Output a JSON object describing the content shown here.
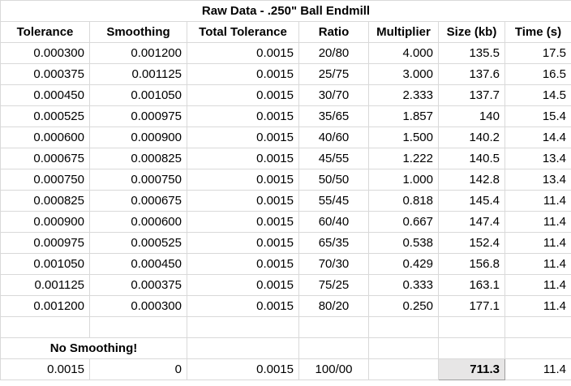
{
  "title": "Raw Data - .250\" Ball Endmill",
  "headers": [
    "Tolerance",
    "Smoothing",
    "Total Tolerance",
    "Ratio",
    "Multiplier",
    "Size (kb)",
    "Time (s)"
  ],
  "rows": [
    [
      "0.000300",
      "0.001200",
      "0.0015",
      "20/80",
      "4.000",
      "135.5",
      "17.5"
    ],
    [
      "0.000375",
      "0.001125",
      "0.0015",
      "25/75",
      "3.000",
      "137.6",
      "16.5"
    ],
    [
      "0.000450",
      "0.001050",
      "0.0015",
      "30/70",
      "2.333",
      "137.7",
      "14.5"
    ],
    [
      "0.000525",
      "0.000975",
      "0.0015",
      "35/65",
      "1.857",
      "140",
      "15.4"
    ],
    [
      "0.000600",
      "0.000900",
      "0.0015",
      "40/60",
      "1.500",
      "140.2",
      "14.4"
    ],
    [
      "0.000675",
      "0.000825",
      "0.0015",
      "45/55",
      "1.222",
      "140.5",
      "13.4"
    ],
    [
      "0.000750",
      "0.000750",
      "0.0015",
      "50/50",
      "1.000",
      "142.8",
      "13.4"
    ],
    [
      "0.000825",
      "0.000675",
      "0.0015",
      "55/45",
      "0.818",
      "145.4",
      "11.4"
    ],
    [
      "0.000900",
      "0.000600",
      "0.0015",
      "60/40",
      "0.667",
      "147.4",
      "11.4"
    ],
    [
      "0.000975",
      "0.000525",
      "0.0015",
      "65/35",
      "0.538",
      "152.4",
      "11.4"
    ],
    [
      "0.001050",
      "0.000450",
      "0.0015",
      "70/30",
      "0.429",
      "156.8",
      "11.4"
    ],
    [
      "0.001125",
      "0.000375",
      "0.0015",
      "75/25",
      "0.333",
      "163.1",
      "11.4"
    ],
    [
      "0.001200",
      "0.000300",
      "0.0015",
      "80/20",
      "0.250",
      "177.1",
      "11.4"
    ]
  ],
  "no_smoothing_label": "No Smoothing!",
  "no_smoothing_row": [
    "0.0015",
    "0",
    "0.0015",
    "100/00",
    "",
    "711.3",
    "11.4"
  ],
  "colors": {
    "header_text": "#1f4e79",
    "highlight_text": "#e67e22",
    "highlight_fill": "#e7e6e6",
    "gridline": "#d9d9d9"
  }
}
